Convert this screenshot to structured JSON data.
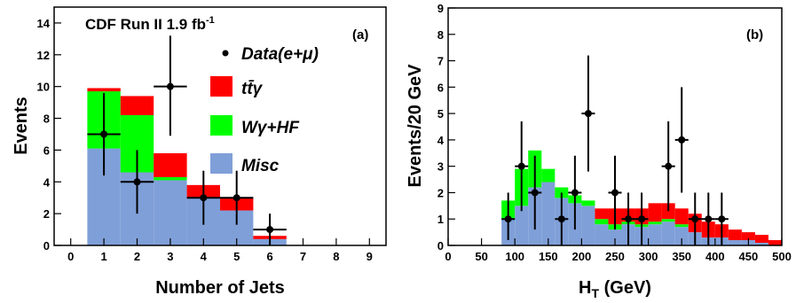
{
  "colors": {
    "ttgamma": "#ff0000",
    "wgamma_hf": "#00ff00",
    "misc": "#7f9fd8",
    "data": "#000000"
  },
  "chart_data": [
    {
      "type": "bar",
      "panel_label": "(a)",
      "title": "CDF Run II 1.9 fb",
      "title_superscript": "-1",
      "xlabel": "Number of Jets",
      "ylabel": "Events",
      "xlim": [
        -0.5,
        9.5
      ],
      "ylim": [
        0,
        15
      ],
      "xticks": [
        0,
        1,
        2,
        3,
        4,
        5,
        6,
        7,
        8,
        9
      ],
      "yticks": [
        0,
        2,
        4,
        6,
        8,
        10,
        12,
        14
      ],
      "legend": {
        "data": "Data(e+μ)",
        "ttgamma": "tt̄γ",
        "wgamma_hf": "Wγ+HF",
        "misc": "Misc"
      },
      "legend_placement": "top-right",
      "categories": [
        1,
        2,
        3,
        4,
        5,
        6
      ],
      "series": [
        {
          "name": "Misc",
          "values": [
            6.1,
            4.6,
            4.1,
            3.0,
            2.2,
            0.4
          ]
        },
        {
          "name": "Wγ+HF",
          "values": [
            3.6,
            3.6,
            0.2,
            0.0,
            0.0,
            0.0
          ]
        },
        {
          "name": "tt̄γ",
          "values": [
            0.2,
            1.2,
            1.5,
            0.8,
            0.8,
            0.2
          ]
        }
      ],
      "data_points": [
        {
          "x": 1,
          "y": 7,
          "yerr": [
            2.6,
            2.6
          ]
        },
        {
          "x": 2,
          "y": 4,
          "yerr": [
            2.0,
            2.0
          ]
        },
        {
          "x": 3,
          "y": 10,
          "yerr": [
            3.1,
            3.2
          ]
        },
        {
          "x": 4,
          "y": 3,
          "yerr": [
            1.7,
            1.7
          ]
        },
        {
          "x": 5,
          "y": 3,
          "yerr": [
            1.7,
            1.7
          ]
        },
        {
          "x": 6,
          "y": 1,
          "yerr": [
            1.0,
            1.0
          ]
        }
      ]
    },
    {
      "type": "bar",
      "panel_label": "(b)",
      "xlabel_main": "H",
      "xlabel_sub": "T",
      "xlabel_unit": " (GeV)",
      "ylabel": "Events/20 GeV",
      "xlim": [
        0,
        500
      ],
      "ylim": [
        0,
        9
      ],
      "xticks": [
        0,
        50,
        100,
        150,
        200,
        250,
        300,
        350,
        400,
        450,
        500
      ],
      "yticks": [
        0,
        1,
        2,
        3,
        4,
        5,
        6,
        7,
        8,
        9
      ],
      "bin_width": 20,
      "bin_edges_start": 80,
      "series": [
        {
          "name": "Misc",
          "values": [
            1.0,
            1.5,
            2.2,
            2.4,
            1.8,
            1.6,
            1.5,
            0.8,
            0.6,
            0.8,
            0.7,
            0.8,
            0.9,
            0.7,
            0.5,
            0.3,
            0.3,
            0.2,
            0.2,
            0.1,
            0.0
          ]
        },
        {
          "name": "Wγ+HF",
          "values": [
            0.7,
            1.4,
            1.4,
            0.5,
            0.4,
            0.3,
            0.2,
            0.2,
            0.2,
            0.1,
            0.1,
            0.1,
            0.1,
            0.1,
            0.0,
            0.0,
            0.0,
            0.0,
            0.0,
            0.0,
            0.0
          ]
        },
        {
          "name": "tt̄γ",
          "values": [
            0.0,
            0.0,
            0.0,
            0.0,
            0.0,
            0.0,
            0.0,
            0.4,
            0.6,
            0.5,
            0.6,
            0.7,
            0.6,
            0.6,
            0.7,
            0.6,
            0.5,
            0.4,
            0.3,
            0.3,
            0.2
          ]
        }
      ],
      "data_points": [
        {
          "x": 90,
          "y": 1,
          "yerr": [
            0.8,
            1.0
          ]
        },
        {
          "x": 110,
          "y": 3,
          "yerr": [
            1.7,
            1.7
          ]
        },
        {
          "x": 130,
          "y": 2,
          "yerr": [
            1.4,
            1.4
          ]
        },
        {
          "x": 170,
          "y": 1,
          "yerr": [
            1.0,
            1.0
          ]
        },
        {
          "x": 190,
          "y": 2,
          "yerr": [
            1.4,
            1.4
          ]
        },
        {
          "x": 210,
          "y": 5,
          "yerr": [
            2.2,
            2.2
          ]
        },
        {
          "x": 250,
          "y": 2,
          "yerr": [
            1.4,
            1.4
          ]
        },
        {
          "x": 270,
          "y": 1,
          "yerr": [
            1.0,
            1.0
          ]
        },
        {
          "x": 290,
          "y": 1,
          "yerr": [
            1.0,
            1.0
          ]
        },
        {
          "x": 330,
          "y": 3,
          "yerr": [
            1.7,
            1.7
          ]
        },
        {
          "x": 350,
          "y": 4,
          "yerr": [
            2.0,
            2.0
          ]
        },
        {
          "x": 370,
          "y": 1,
          "yerr": [
            1.0,
            1.0
          ]
        },
        {
          "x": 390,
          "y": 1,
          "yerr": [
            1.0,
            1.0
          ]
        },
        {
          "x": 410,
          "y": 1,
          "yerr": [
            1.0,
            1.0
          ]
        }
      ]
    }
  ]
}
